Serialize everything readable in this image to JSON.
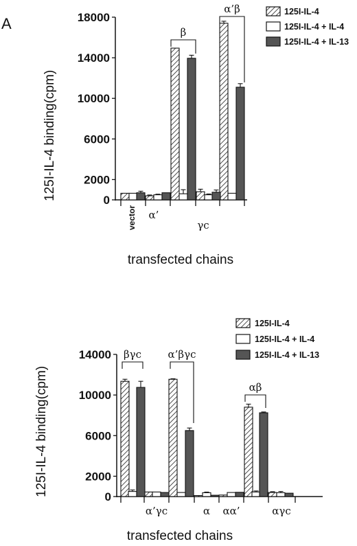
{
  "panel_label": "A",
  "legend_labels": [
    "125I-IL-4",
    "125I-IL-4 + IL-4",
    "125I-IL-4 + IL-13"
  ],
  "series_colors": {
    "hatched": "#ffffff",
    "open": "#ffffff",
    "filled": "#555555"
  },
  "chart_data": [
    {
      "type": "bar",
      "panel": "top",
      "ylabel": "125I-IL-4 binding(cpm)",
      "xlabel": "transfected chains",
      "ylim": [
        0,
        18000
      ],
      "yticks": [
        0,
        2000,
        6000,
        10000,
        14000,
        18000
      ],
      "categories": [
        "vector",
        "α’",
        "β",
        "γc",
        "α’β"
      ],
      "series": [
        {
          "name": "125I-IL-4",
          "values": [
            650,
            400,
            14950,
            800,
            17400
          ],
          "errors": [
            0,
            80,
            0,
            250,
            200
          ]
        },
        {
          "name": "125I-IL-4 + IL-4",
          "values": [
            650,
            500,
            600,
            500,
            650
          ],
          "errors": [
            0,
            60,
            400,
            80,
            0
          ]
        },
        {
          "name": "125I-IL-4 + IL-13",
          "values": [
            700,
            700,
            13950,
            750,
            11100
          ],
          "errors": [
            150,
            0,
            300,
            220,
            350
          ]
        }
      ],
      "annotations": [
        "β",
        "γc",
        "α’β"
      ]
    },
    {
      "type": "bar",
      "panel": "bottom",
      "ylabel": "125I-IL-4 binding(cpm)",
      "xlabel": "transfected chains",
      "ylim": [
        0,
        14000
      ],
      "yticks": [
        0,
        2000,
        6000,
        10000,
        14000
      ],
      "categories": [
        "βγc",
        "α’βγc",
        "α’γc",
        "α",
        "αα’",
        "αβ",
        "αγc"
      ],
      "series": [
        {
          "name": "125I-IL-4",
          "values": [
            11350,
            11550,
            450,
            100,
            150,
            8800,
            400
          ],
          "errors": [
            200,
            50,
            0,
            0,
            0,
            300,
            80
          ]
        },
        {
          "name": "125I-IL-4 + IL-4",
          "values": [
            500,
            400,
            450,
            380,
            400,
            450,
            380
          ],
          "errors": [
            150,
            0,
            0,
            60,
            0,
            100,
            120
          ]
        },
        {
          "name": "125I-IL-4 + IL-13",
          "values": [
            10750,
            6500,
            400,
            130,
            420,
            8250,
            330
          ],
          "errors": [
            600,
            250,
            0,
            0,
            0,
            80,
            0
          ]
        }
      ],
      "annotations": [
        "βγc",
        "α’βγc",
        "αβ"
      ]
    }
  ]
}
